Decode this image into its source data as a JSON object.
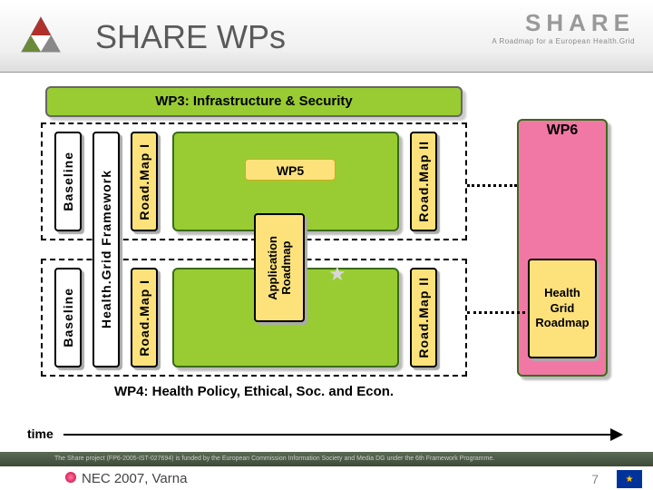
{
  "header": {
    "title": "SHARE WPs",
    "brand": "SHARE",
    "tagline": "A Roadmap for a European Health.Grid"
  },
  "diagram": {
    "wp3": "WP3: Infrastructure & Security",
    "wp4": "WP4: Health Policy, Ethical, Soc. and Econ.",
    "wp5": "WP5",
    "wp6": "WP6",
    "baseline": "Baseline",
    "hgf": "Health.Grid Framework",
    "roadmap1": "Road.Map I",
    "roadmap2": "Road.Map II",
    "app_roadmap_line1": "Application",
    "app_roadmap_line2": "Roadmap",
    "hg_roadmap_line1": "Health",
    "hg_roadmap_line2": "Grid",
    "hg_roadmap_line3": "Roadmap",
    "time": "time"
  },
  "footer": {
    "bar_text": "The Share project (FP6-2005-IST-027694) is funded by the European Commission Information Society and Media DG under the 6th Framework Programme.",
    "venue": "NEC 2007, Varna",
    "page": "7"
  },
  "colors": {
    "green": "#99cc33",
    "yellow": "#fde27c",
    "pink": "#f178a5"
  }
}
